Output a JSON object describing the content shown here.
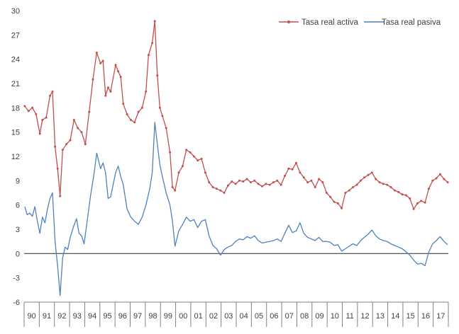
{
  "chart_data": {
    "type": "line",
    "title": "",
    "xlabel": "",
    "ylabel": "",
    "x_start": "1990-01",
    "x_end": "2017-12",
    "x_categories": [
      "90",
      "91",
      "92",
      "93",
      "94",
      "95",
      "96",
      "97",
      "98",
      "99",
      "00",
      "01",
      "02",
      "03",
      "04",
      "05",
      "06",
      "07",
      "08",
      "09",
      "10",
      "11",
      "12",
      "13",
      "14",
      "15",
      "16",
      "17"
    ],
    "yticks": [
      -6,
      -3,
      0,
      3,
      6,
      9,
      12,
      15,
      18,
      21,
      24,
      27,
      30
    ],
    "ylim": [
      -6,
      30
    ],
    "legend_position": "top-right",
    "series": [
      {
        "name": "Tasa real activa",
        "color": "#c0504d",
        "marker": "dot",
        "points": [
          [
            "1990-01",
            18.2
          ],
          [
            "1990-04",
            17.6
          ],
          [
            "1990-07",
            18.0
          ],
          [
            "1990-10",
            17.2
          ],
          [
            "1991-01",
            14.8
          ],
          [
            "1991-03",
            16.5
          ],
          [
            "1991-06",
            16.8
          ],
          [
            "1991-09",
            19.5
          ],
          [
            "1991-11",
            20.0
          ],
          [
            "1992-01",
            13.2
          ],
          [
            "1992-03",
            10.5
          ],
          [
            "1992-05",
            7.1
          ],
          [
            "1992-07",
            12.8
          ],
          [
            "1992-10",
            13.5
          ],
          [
            "1993-01",
            14.0
          ],
          [
            "1993-04",
            16.5
          ],
          [
            "1993-07",
            15.5
          ],
          [
            "1993-10",
            15.0
          ],
          [
            "1994-01",
            13.5
          ],
          [
            "1994-04",
            17.5
          ],
          [
            "1994-07",
            21.5
          ],
          [
            "1994-10",
            24.8
          ],
          [
            "1995-01",
            23.5
          ],
          [
            "1995-03",
            23.8
          ],
          [
            "1995-05",
            19.5
          ],
          [
            "1995-07",
            20.5
          ],
          [
            "1995-09",
            20.0
          ],
          [
            "1996-01",
            23.3
          ],
          [
            "1996-03",
            22.5
          ],
          [
            "1996-05",
            21.8
          ],
          [
            "1996-07",
            18.5
          ],
          [
            "1996-10",
            17.2
          ],
          [
            "1997-01",
            16.5
          ],
          [
            "1997-04",
            16.2
          ],
          [
            "1997-07",
            17.5
          ],
          [
            "1997-10",
            18.0
          ],
          [
            "1998-01",
            20.0
          ],
          [
            "1998-03",
            24.5
          ],
          [
            "1998-06",
            26.0
          ],
          [
            "1998-08",
            28.7
          ],
          [
            "1998-10",
            22.0
          ],
          [
            "1998-12",
            18.0
          ],
          [
            "1999-02",
            17.0
          ],
          [
            "1999-05",
            15.5
          ],
          [
            "1999-08",
            12.5
          ],
          [
            "1999-10",
            8.2
          ],
          [
            "1999-12",
            7.8
          ],
          [
            "2000-03",
            10.0
          ],
          [
            "2000-06",
            10.8
          ],
          [
            "2000-09",
            12.8
          ],
          [
            "2000-12",
            12.5
          ],
          [
            "2001-03",
            12.0
          ],
          [
            "2001-06",
            11.5
          ],
          [
            "2001-09",
            11.7
          ],
          [
            "2001-12",
            10.0
          ],
          [
            "2002-03",
            8.8
          ],
          [
            "2002-06",
            8.2
          ],
          [
            "2002-09",
            8.0
          ],
          [
            "2002-12",
            7.8
          ],
          [
            "2003-03",
            7.5
          ],
          [
            "2003-06",
            8.4
          ],
          [
            "2003-09",
            8.9
          ],
          [
            "2003-12",
            8.6
          ],
          [
            "2004-03",
            9.0
          ],
          [
            "2004-06",
            8.9
          ],
          [
            "2004-09",
            9.2
          ],
          [
            "2004-12",
            8.8
          ],
          [
            "2005-03",
            9.0
          ],
          [
            "2005-06",
            8.6
          ],
          [
            "2005-09",
            8.3
          ],
          [
            "2005-12",
            8.6
          ],
          [
            "2006-03",
            8.5
          ],
          [
            "2006-06",
            8.8
          ],
          [
            "2006-09",
            9.0
          ],
          [
            "2006-12",
            8.5
          ],
          [
            "2007-03",
            9.6
          ],
          [
            "2007-06",
            10.5
          ],
          [
            "2007-09",
            10.4
          ],
          [
            "2007-12",
            11.2
          ],
          [
            "2008-03",
            10.0
          ],
          [
            "2008-06",
            9.4
          ],
          [
            "2008-09",
            8.8
          ],
          [
            "2008-12",
            9.0
          ],
          [
            "2009-03",
            8.2
          ],
          [
            "2009-06",
            9.2
          ],
          [
            "2009-09",
            8.8
          ],
          [
            "2009-12",
            7.5
          ],
          [
            "2010-03",
            7.0
          ],
          [
            "2010-06",
            6.4
          ],
          [
            "2010-09",
            6.2
          ],
          [
            "2010-12",
            5.6
          ],
          [
            "2011-03",
            7.5
          ],
          [
            "2011-06",
            7.8
          ],
          [
            "2011-09",
            8.2
          ],
          [
            "2011-12",
            8.5
          ],
          [
            "2012-03",
            9.0
          ],
          [
            "2012-06",
            9.4
          ],
          [
            "2012-09",
            9.7
          ],
          [
            "2012-12",
            10.0
          ],
          [
            "2013-03",
            9.2
          ],
          [
            "2013-06",
            8.8
          ],
          [
            "2013-09",
            8.6
          ],
          [
            "2013-12",
            8.5
          ],
          [
            "2014-03",
            8.2
          ],
          [
            "2014-06",
            7.8
          ],
          [
            "2014-09",
            7.6
          ],
          [
            "2014-12",
            7.3
          ],
          [
            "2015-03",
            7.2
          ],
          [
            "2015-06",
            6.8
          ],
          [
            "2015-09",
            5.5
          ],
          [
            "2015-12",
            6.2
          ],
          [
            "2016-03",
            6.5
          ],
          [
            "2016-06",
            6.3
          ],
          [
            "2016-09",
            8.0
          ],
          [
            "2016-12",
            9.0
          ],
          [
            "2017-03",
            9.3
          ],
          [
            "2017-06",
            9.8
          ],
          [
            "2017-09",
            9.2
          ],
          [
            "2017-12",
            8.8
          ]
        ]
      },
      {
        "name": "Tasa real pasiva",
        "color": "#4f81bd",
        "marker": "none",
        "points": [
          [
            "1990-01",
            5.8
          ],
          [
            "1990-03",
            4.8
          ],
          [
            "1990-05",
            5.0
          ],
          [
            "1990-07",
            4.6
          ],
          [
            "1990-09",
            5.8
          ],
          [
            "1990-11",
            4.0
          ],
          [
            "1991-01",
            2.5
          ],
          [
            "1991-03",
            4.5
          ],
          [
            "1991-05",
            3.8
          ],
          [
            "1991-07",
            5.5
          ],
          [
            "1991-09",
            6.8
          ],
          [
            "1991-11",
            7.5
          ],
          [
            "1992-01",
            1.5
          ],
          [
            "1992-03",
            -1.5
          ],
          [
            "1992-05",
            -5.2
          ],
          [
            "1992-07",
            -0.5
          ],
          [
            "1992-09",
            0.8
          ],
          [
            "1992-11",
            0.5
          ],
          [
            "1993-01",
            2.0
          ],
          [
            "1993-04",
            3.5
          ],
          [
            "1993-06",
            4.3
          ],
          [
            "1993-08",
            2.5
          ],
          [
            "1993-10",
            2.2
          ],
          [
            "1993-12",
            1.2
          ],
          [
            "1994-02",
            3.5
          ],
          [
            "1994-05",
            7.0
          ],
          [
            "1994-08",
            10.0
          ],
          [
            "1994-10",
            12.4
          ],
          [
            "1995-01",
            10.5
          ],
          [
            "1995-03",
            11.2
          ],
          [
            "1995-05",
            10.0
          ],
          [
            "1995-07",
            6.8
          ],
          [
            "1995-09",
            7.0
          ],
          [
            "1996-01",
            10.0
          ],
          [
            "1996-03",
            10.8
          ],
          [
            "1996-05",
            9.5
          ],
          [
            "1996-07",
            8.5
          ],
          [
            "1996-10",
            5.5
          ],
          [
            "1997-01",
            4.5
          ],
          [
            "1997-04",
            4.0
          ],
          [
            "1997-07",
            3.6
          ],
          [
            "1997-10",
            4.5
          ],
          [
            "1998-01",
            6.0
          ],
          [
            "1998-04",
            8.0
          ],
          [
            "1998-06",
            10.0
          ],
          [
            "1998-08",
            16.2
          ],
          [
            "1998-10",
            13.5
          ],
          [
            "1998-12",
            11.0
          ],
          [
            "1999-02",
            9.5
          ],
          [
            "1999-05",
            7.5
          ],
          [
            "1999-08",
            6.0
          ],
          [
            "1999-10",
            4.0
          ],
          [
            "1999-12",
            0.9
          ],
          [
            "2000-03",
            2.8
          ],
          [
            "2000-06",
            3.6
          ],
          [
            "2000-09",
            4.5
          ],
          [
            "2000-12",
            4.0
          ],
          [
            "2001-03",
            4.2
          ],
          [
            "2001-06",
            3.2
          ],
          [
            "2001-09",
            4.0
          ],
          [
            "2001-12",
            4.2
          ],
          [
            "2002-03",
            2.2
          ],
          [
            "2002-06",
            1.0
          ],
          [
            "2002-09",
            0.6
          ],
          [
            "2002-12",
            -0.2
          ],
          [
            "2003-03",
            0.5
          ],
          [
            "2003-06",
            0.8
          ],
          [
            "2003-09",
            1.0
          ],
          [
            "2003-12",
            1.5
          ],
          [
            "2004-03",
            1.8
          ],
          [
            "2004-06",
            1.7
          ],
          [
            "2004-09",
            2.1
          ],
          [
            "2004-12",
            1.9
          ],
          [
            "2005-03",
            2.2
          ],
          [
            "2005-06",
            1.6
          ],
          [
            "2005-09",
            1.3
          ],
          [
            "2005-12",
            1.4
          ],
          [
            "2006-03",
            1.5
          ],
          [
            "2006-06",
            1.6
          ],
          [
            "2006-09",
            1.8
          ],
          [
            "2006-12",
            1.5
          ],
          [
            "2007-03",
            2.5
          ],
          [
            "2007-06",
            3.5
          ],
          [
            "2007-09",
            2.6
          ],
          [
            "2007-12",
            2.8
          ],
          [
            "2008-03",
            3.8
          ],
          [
            "2008-06",
            2.5
          ],
          [
            "2008-09",
            2.0
          ],
          [
            "2008-12",
            1.8
          ],
          [
            "2009-03",
            1.6
          ],
          [
            "2009-06",
            2.0
          ],
          [
            "2009-09",
            1.5
          ],
          [
            "2009-12",
            1.5
          ],
          [
            "2010-03",
            1.4
          ],
          [
            "2010-06",
            1.0
          ],
          [
            "2010-09",
            1.1
          ],
          [
            "2010-12",
            0.3
          ],
          [
            "2011-03",
            0.6
          ],
          [
            "2011-06",
            0.9
          ],
          [
            "2011-09",
            1.2
          ],
          [
            "2011-12",
            1.0
          ],
          [
            "2012-03",
            1.6
          ],
          [
            "2012-06",
            2.0
          ],
          [
            "2012-09",
            2.4
          ],
          [
            "2012-12",
            2.9
          ],
          [
            "2013-03",
            2.2
          ],
          [
            "2013-06",
            1.8
          ],
          [
            "2013-09",
            1.6
          ],
          [
            "2013-12",
            1.5
          ],
          [
            "2014-03",
            1.2
          ],
          [
            "2014-06",
            1.0
          ],
          [
            "2014-09",
            0.8
          ],
          [
            "2014-12",
            0.6
          ],
          [
            "2015-03",
            0.2
          ],
          [
            "2015-06",
            -0.2
          ],
          [
            "2015-09",
            -0.8
          ],
          [
            "2015-12",
            -1.3
          ],
          [
            "2016-03",
            -1.2
          ],
          [
            "2016-06",
            -1.5
          ],
          [
            "2016-09",
            0.2
          ],
          [
            "2016-12",
            1.2
          ],
          [
            "2017-03",
            1.6
          ],
          [
            "2017-06",
            2.1
          ],
          [
            "2017-09",
            1.5
          ],
          [
            "2017-12",
            1.1
          ]
        ]
      }
    ]
  }
}
